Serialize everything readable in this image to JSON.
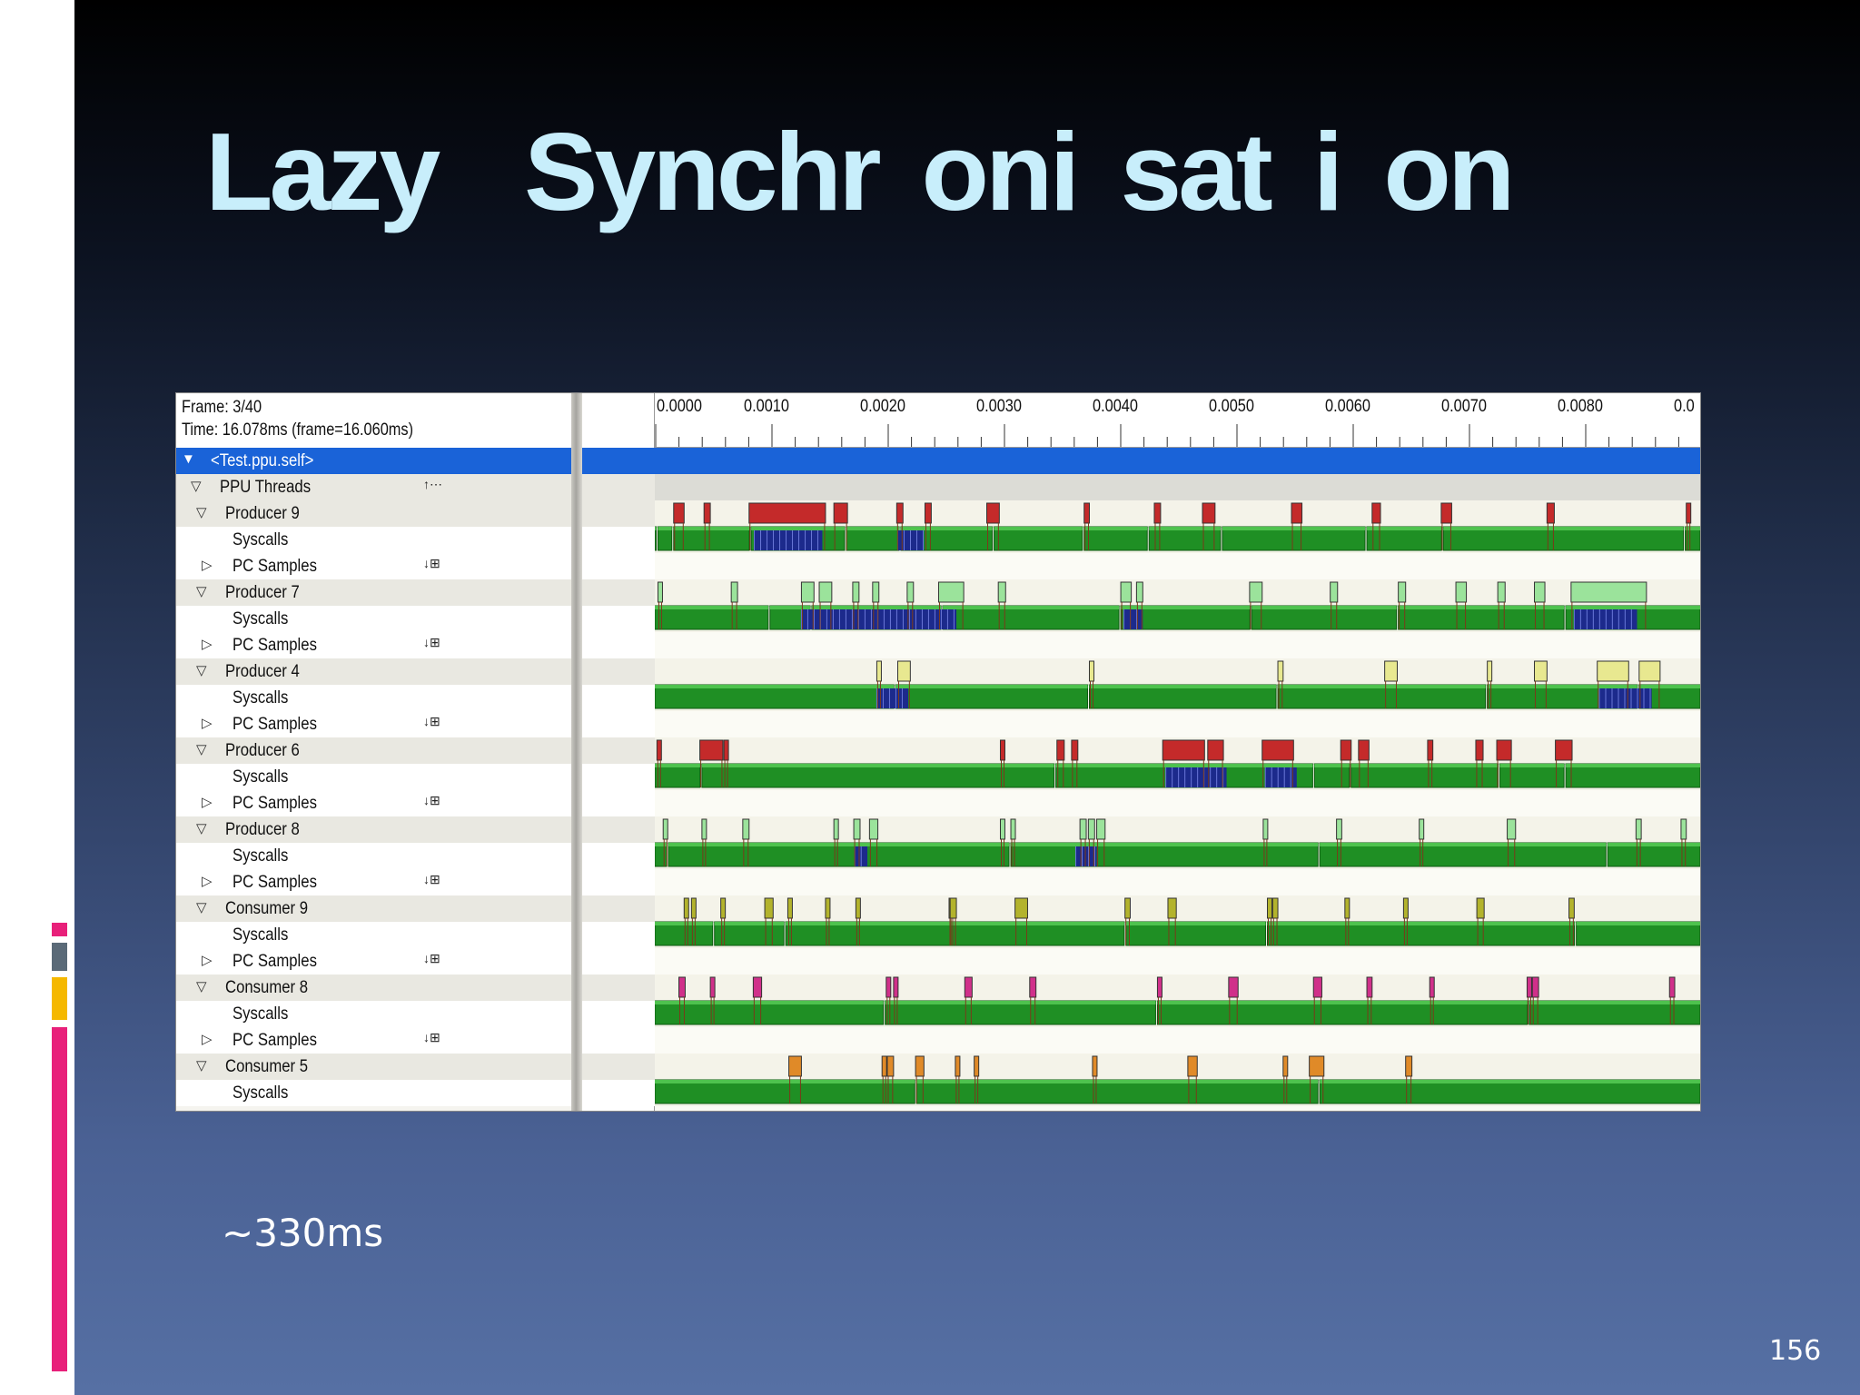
{
  "slide": {
    "title": "Lazy  Synchr oni sat i on",
    "subtitle": "~330ms",
    "page_number": "156",
    "colors": {
      "title": "#c8eefb",
      "accent_pink": "#e8207a",
      "accent_gray": "#5a6a78",
      "accent_yellow": "#f5b800"
    }
  },
  "profiler": {
    "frame_label": "Frame: 3/40",
    "time_label": "Time: 16.078ms (frame=16.060ms)",
    "ruler_labels": [
      "0.0000",
      "0.0010",
      "0.0020",
      "0.0030",
      "0.0040",
      "0.0050",
      "0.0060",
      "0.0070",
      "0.0080",
      "0.0"
    ],
    "rows": [
      {
        "label": "<Test.ppu.self>",
        "indent": 0,
        "toggle": "▼",
        "kind": "sel",
        "action": ""
      },
      {
        "label": "PPU Threads",
        "indent": 1,
        "toggle": "▽",
        "kind": "hdr",
        "action": "↑⋯"
      },
      {
        "label": "Producer 9",
        "indent": 2,
        "toggle": "▽",
        "kind": "hdr",
        "action": ""
      },
      {
        "label": "Syscalls",
        "indent": 3,
        "toggle": "",
        "kind": "wht",
        "action": ""
      },
      {
        "label": "PC Samples",
        "indent": 3,
        "toggle": "▷",
        "kind": "wht",
        "action": "↓⊞"
      },
      {
        "label": "Producer 7",
        "indent": 2,
        "toggle": "▽",
        "kind": "hdr",
        "action": ""
      },
      {
        "label": "Syscalls",
        "indent": 3,
        "toggle": "",
        "kind": "wht",
        "action": ""
      },
      {
        "label": "PC Samples",
        "indent": 3,
        "toggle": "▷",
        "kind": "wht",
        "action": "↓⊞"
      },
      {
        "label": "Producer 4",
        "indent": 2,
        "toggle": "▽",
        "kind": "hdr",
        "action": ""
      },
      {
        "label": "Syscalls",
        "indent": 3,
        "toggle": "",
        "kind": "wht",
        "action": ""
      },
      {
        "label": "PC Samples",
        "indent": 3,
        "toggle": "▷",
        "kind": "wht",
        "action": "↓⊞"
      },
      {
        "label": "Producer 6",
        "indent": 2,
        "toggle": "▽",
        "kind": "hdr",
        "action": ""
      },
      {
        "label": "Syscalls",
        "indent": 3,
        "toggle": "",
        "kind": "wht",
        "action": ""
      },
      {
        "label": "PC Samples",
        "indent": 3,
        "toggle": "▷",
        "kind": "wht",
        "action": "↓⊞"
      },
      {
        "label": "Producer 8",
        "indent": 2,
        "toggle": "▽",
        "kind": "hdr",
        "action": ""
      },
      {
        "label": "Syscalls",
        "indent": 3,
        "toggle": "",
        "kind": "wht",
        "action": ""
      },
      {
        "label": "PC Samples",
        "indent": 3,
        "toggle": "▷",
        "kind": "wht",
        "action": "↓⊞"
      },
      {
        "label": "Consumer 9",
        "indent": 2,
        "toggle": "▽",
        "kind": "hdr",
        "action": ""
      },
      {
        "label": "Syscalls",
        "indent": 3,
        "toggle": "",
        "kind": "wht",
        "action": ""
      },
      {
        "label": "PC Samples",
        "indent": 3,
        "toggle": "▷",
        "kind": "wht",
        "action": "↓⊞"
      },
      {
        "label": "Consumer 8",
        "indent": 2,
        "toggle": "▽",
        "kind": "hdr",
        "action": ""
      },
      {
        "label": "Syscalls",
        "indent": 3,
        "toggle": "",
        "kind": "wht",
        "action": ""
      },
      {
        "label": "PC Samples",
        "indent": 3,
        "toggle": "▷",
        "kind": "wht",
        "action": "↓⊞"
      },
      {
        "label": "Consumer 5",
        "indent": 2,
        "toggle": "▽",
        "kind": "hdr",
        "action": ""
      },
      {
        "label": "Syscalls",
        "indent": 3,
        "toggle": "",
        "kind": "wht",
        "action": ""
      }
    ],
    "threads": [
      {
        "name": "Producer 9",
        "color": "#c42a2a",
        "gaps": [
          0.003,
          0.018,
          0.092,
          0.183,
          0.235,
          0.324,
          0.41,
          0.472,
          0.542,
          0.68,
          0.753,
          0.984
        ],
        "marks": [
          [
            0.018,
            0.01
          ],
          [
            0.047,
            0.006
          ],
          [
            0.09,
            0.073
          ],
          [
            0.171,
            0.013
          ],
          [
            0.231,
            0.006
          ],
          [
            0.258,
            0.006
          ],
          [
            0.317,
            0.012
          ],
          [
            0.41,
            0.005
          ],
          [
            0.477,
            0.006
          ],
          [
            0.523,
            0.012
          ],
          [
            0.608,
            0.01
          ],
          [
            0.685,
            0.008
          ],
          [
            0.751,
            0.01
          ],
          [
            0.852,
            0.007
          ],
          [
            0.985,
            0.004
          ]
        ],
        "busy": [
          [
            0.095,
            0.065
          ],
          [
            0.232,
            0.025
          ]
        ]
      },
      {
        "name": "Producer 7",
        "color": "#9be39b",
        "gaps": [
          0.11,
          0.15,
          0.275,
          0.445,
          0.57,
          0.71,
          0.87
        ],
        "marks": [
          [
            0.003,
            0.004
          ],
          [
            0.073,
            0.006
          ],
          [
            0.14,
            0.012
          ],
          [
            0.157,
            0.012
          ],
          [
            0.189,
            0.006
          ],
          [
            0.208,
            0.006
          ],
          [
            0.241,
            0.006
          ],
          [
            0.271,
            0.024
          ],
          [
            0.328,
            0.007
          ],
          [
            0.445,
            0.01
          ],
          [
            0.46,
            0.006
          ],
          [
            0.568,
            0.012
          ],
          [
            0.645,
            0.007
          ],
          [
            0.71,
            0.007
          ],
          [
            0.765,
            0.01
          ],
          [
            0.805,
            0.007
          ],
          [
            0.84,
            0.01
          ],
          [
            0.875,
            0.072
          ]
        ],
        "busy": [
          [
            0.14,
            0.148
          ],
          [
            0.448,
            0.018
          ],
          [
            0.878,
            0.06
          ]
        ]
      },
      {
        "name": "Producer 4",
        "color": "#e8e890",
        "gaps": [
          0.23,
          0.415,
          0.595,
          0.795,
          0.94
        ],
        "marks": [
          [
            0.212,
            0.004
          ],
          [
            0.232,
            0.012
          ],
          [
            0.415,
            0.002
          ],
          [
            0.595,
            0.005
          ],
          [
            0.697,
            0.012
          ],
          [
            0.795,
            0.002
          ],
          [
            0.84,
            0.012
          ],
          [
            0.9,
            0.03
          ],
          [
            0.94,
            0.02
          ]
        ],
        "busy": [
          [
            0.212,
            0.03
          ],
          [
            0.902,
            0.05
          ]
        ]
      },
      {
        "name": "Producer 6",
        "color": "#c42a2a",
        "gaps": [
          0.045,
          0.383,
          0.63,
          0.665,
          0.807,
          0.87
        ],
        "marks": [
          [
            0.002,
            0.004
          ],
          [
            0.043,
            0.022
          ],
          [
            0.066,
            0.004
          ],
          [
            0.33,
            0.003
          ],
          [
            0.384,
            0.007
          ],
          [
            0.398,
            0.006
          ],
          [
            0.485,
            0.04
          ],
          [
            0.528,
            0.015
          ],
          [
            0.58,
            0.03
          ],
          [
            0.655,
            0.01
          ],
          [
            0.672,
            0.01
          ],
          [
            0.738,
            0.005
          ],
          [
            0.784,
            0.007
          ],
          [
            0.804,
            0.014
          ],
          [
            0.86,
            0.016
          ]
        ],
        "busy": [
          [
            0.488,
            0.058
          ],
          [
            0.583,
            0.03
          ]
        ]
      },
      {
        "name": "Producer 8",
        "color": "#9be39b",
        "gaps": [
          0.013,
          0.34,
          0.635,
          0.91
        ],
        "marks": [
          [
            0.008,
            0.004
          ],
          [
            0.045,
            0.004
          ],
          [
            0.084,
            0.006
          ],
          [
            0.171,
            0.004
          ],
          [
            0.19,
            0.006
          ],
          [
            0.205,
            0.008
          ],
          [
            0.33,
            0.004
          ],
          [
            0.34,
            0.003
          ],
          [
            0.406,
            0.006
          ],
          [
            0.414,
            0.006
          ],
          [
            0.422,
            0.008
          ],
          [
            0.581,
            0.003
          ],
          [
            0.651,
            0.005
          ],
          [
            0.73,
            0.004
          ],
          [
            0.814,
            0.008
          ],
          [
            0.937,
            0.005
          ],
          [
            0.98,
            0.005
          ]
        ],
        "busy": [
          [
            0.191,
            0.012
          ],
          [
            0.402,
            0.02
          ]
        ]
      },
      {
        "name": "Consumer 9",
        "color": "#b3b32c",
        "gaps": [
          0.057,
          0.125,
          0.45,
          0.585,
          0.88
        ],
        "marks": [
          [
            0.028,
            0.004
          ],
          [
            0.035,
            0.004
          ],
          [
            0.063,
            0.004
          ],
          [
            0.105,
            0.008
          ],
          [
            0.127,
            0.004
          ],
          [
            0.163,
            0.004
          ],
          [
            0.192,
            0.004
          ],
          [
            0.281,
            0.002
          ],
          [
            0.282,
            0.006
          ],
          [
            0.344,
            0.012
          ],
          [
            0.449,
            0.005
          ],
          [
            0.49,
            0.008
          ],
          [
            0.585,
            0.002
          ],
          [
            0.59,
            0.005
          ],
          [
            0.659,
            0.004
          ],
          [
            0.715,
            0.004
          ],
          [
            0.785,
            0.007
          ],
          [
            0.873,
            0.005
          ]
        ],
        "busy": []
      },
      {
        "name": "Consumer 8",
        "color": "#d0308a",
        "gaps": [
          0.22,
          0.48,
          0.835
        ],
        "marks": [
          [
            0.023,
            0.006
          ],
          [
            0.053,
            0.004
          ],
          [
            0.094,
            0.008
          ],
          [
            0.221,
            0.004
          ],
          [
            0.228,
            0.004
          ],
          [
            0.296,
            0.007
          ],
          [
            0.358,
            0.006
          ],
          [
            0.48,
            0.003
          ],
          [
            0.548,
            0.009
          ],
          [
            0.629,
            0.008
          ],
          [
            0.68,
            0.005
          ],
          [
            0.74,
            0.004
          ],
          [
            0.833,
            0.004
          ],
          [
            0.838,
            0.006
          ],
          [
            0.969,
            0.005
          ]
        ],
        "busy": []
      },
      {
        "name": "Consumer 5",
        "color": "#e08a28",
        "gaps": [
          0.25,
          0.635
        ],
        "marks": [
          [
            0.128,
            0.012
          ],
          [
            0.217,
            0.004
          ],
          [
            0.222,
            0.006
          ],
          [
            0.249,
            0.008
          ],
          [
            0.287,
            0.004
          ],
          [
            0.305,
            0.004
          ],
          [
            0.418,
            0.002
          ],
          [
            0.509,
            0.009
          ],
          [
            0.6,
            0.002
          ],
          [
            0.625,
            0.014
          ],
          [
            0.717,
            0.006
          ]
        ],
        "busy": []
      }
    ]
  }
}
